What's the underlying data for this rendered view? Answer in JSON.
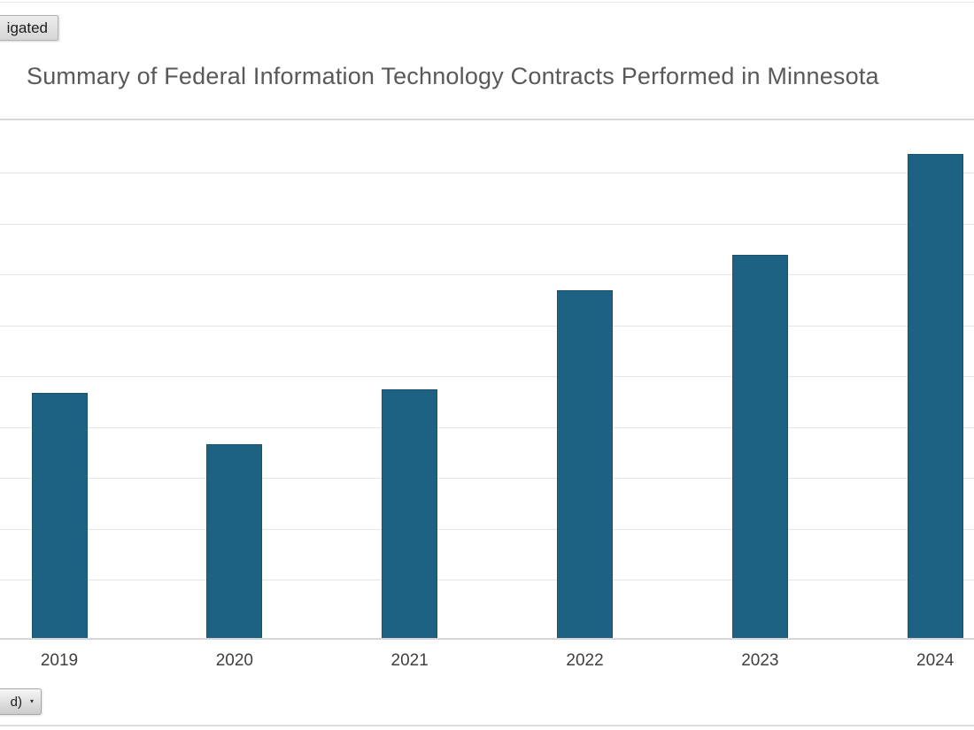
{
  "window": {
    "top_partial_button": {
      "label": "igated"
    },
    "bottom_partial_dropdown": {
      "label": "d)",
      "arrow": "▾"
    }
  },
  "chart": {
    "title": "Summary of Federal Information Technology Contracts Performed in Minnesota"
  },
  "chart_data": {
    "type": "bar",
    "title": "Summary of Federal Information Technology Contracts Performed in Minnesota",
    "categories": [
      "2019",
      "2020",
      "2021",
      "2022",
      "2023",
      "2024"
    ],
    "values_relative": [
      0.475,
      0.376,
      0.482,
      0.673,
      0.741,
      0.935
    ],
    "xlabel": "",
    "ylabel": "",
    "y_axis_labels_visible": false,
    "grid": true,
    "legend": false,
    "colors": {
      "bar": "#1d6283",
      "gridline": "#e5e5e8",
      "axis_line": "#d6d6d8",
      "title": "#58595b",
      "tick_label": "#3f3f41"
    },
    "notes": "Y-axis tick labels are cropped off the left edge of the screenshot; values are bar heights as a fraction of the visible plot-area height."
  }
}
